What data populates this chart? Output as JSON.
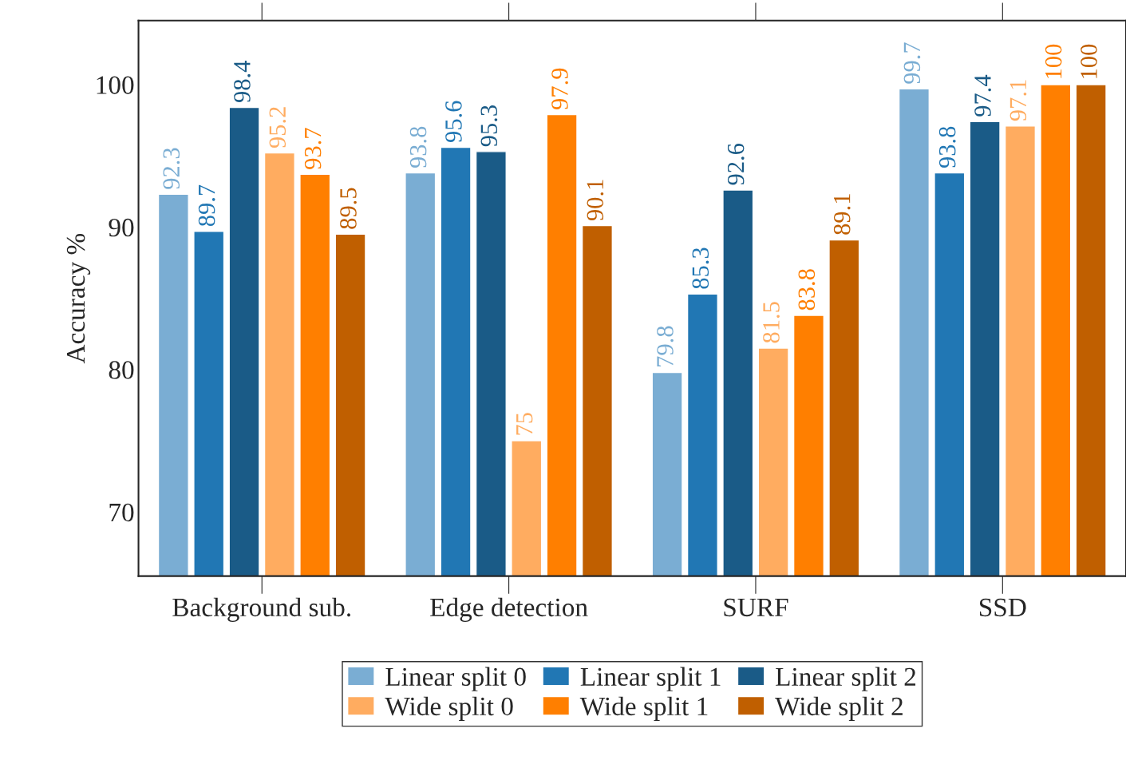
{
  "chart_data": {
    "type": "bar",
    "ylabel": "Accuracy %",
    "categories": [
      "Background sub.",
      "Edge detection",
      "SURF",
      "SSD"
    ],
    "series": [
      {
        "name": "Linear split 0",
        "color": "#7aadd3",
        "values": [
          92.3,
          93.8,
          79.8,
          99.7
        ]
      },
      {
        "name": "Linear split 1",
        "color": "#2177b4",
        "values": [
          89.7,
          95.6,
          85.3,
          93.8
        ]
      },
      {
        "name": "Linear split 2",
        "color": "#1a5b87",
        "values": [
          98.4,
          95.3,
          92.6,
          97.4
        ]
      },
      {
        "name": "Wide split 0",
        "color": "#ffac60",
        "values": [
          95.2,
          75,
          81.5,
          97.1
        ]
      },
      {
        "name": "Wide split 1",
        "color": "#ff7f00",
        "values": [
          93.7,
          97.9,
          83.8,
          100
        ]
      },
      {
        "name": "Wide split 2",
        "color": "#c05f00",
        "values": [
          89.5,
          90.1,
          89.1,
          100
        ]
      }
    ],
    "ylim": [
      65.5,
      104.5
    ],
    "yticks": [
      70,
      80,
      90,
      100
    ],
    "data_labels": true,
    "grid": false,
    "legend": "bottom"
  }
}
